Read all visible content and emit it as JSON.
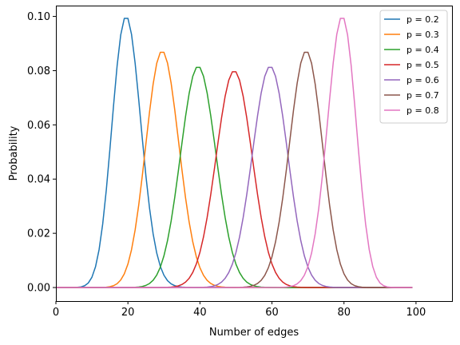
{
  "chart_data": {
    "type": "line",
    "xlabel": "Number of edges",
    "ylabel": "Probability",
    "xlim": [
      0,
      110
    ],
    "ylim": [
      -0.005,
      0.104
    ],
    "xticks": [
      0,
      20,
      40,
      60,
      80,
      100
    ],
    "xtick_labels": [
      "0",
      "20",
      "40",
      "60",
      "80",
      "100"
    ],
    "yticks": [
      0.0,
      0.02,
      0.04,
      0.06,
      0.08,
      0.1
    ],
    "ytick_labels": [
      "0.00",
      "0.02",
      "0.04",
      "0.06",
      "0.08",
      "0.10"
    ],
    "grid": false,
    "legend_position": "top-right",
    "n": 99,
    "x_range": [
      0,
      99
    ],
    "series": [
      {
        "name": "p = 0.2",
        "p": 0.2,
        "color": "#1f77b4"
      },
      {
        "name": "p = 0.3",
        "p": 0.3,
        "color": "#ff7f0e"
      },
      {
        "name": "p = 0.4",
        "p": 0.4,
        "color": "#2ca02c"
      },
      {
        "name": "p = 0.5",
        "p": 0.5,
        "color": "#d62728"
      },
      {
        "name": "p = 0.6",
        "p": 0.6,
        "color": "#9467bd"
      },
      {
        "name": "p = 0.7",
        "p": 0.7,
        "color": "#8c564b"
      },
      {
        "name": "p = 0.8",
        "p": 0.8,
        "color": "#e377c2"
      }
    ]
  }
}
